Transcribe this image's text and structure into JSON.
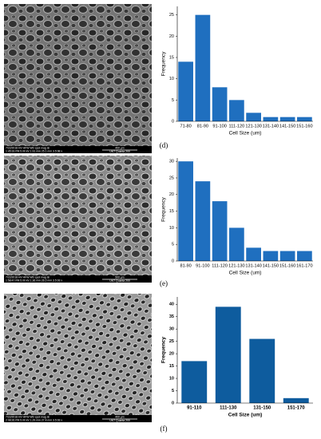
{
  "images": [
    {
      "info": [
        "7/22/2018 HV HFW WD spot mag ⊞",
        "1:45:33 PM 5.00 kV 1.91 mm 25.1 mm 3.5 98 x"
      ],
      "scale": "400 μm",
      "instrument": "UNT Quanta 200"
    },
    {
      "info": [
        "7/22/2018 HV HFW WD spot mag ⊞",
        "1:58:47 PM 5.00 kV 1.36 mm 26.2 mm 3.5 93 x"
      ],
      "scale": "500 μm",
      "instrument": "UNT Quanta 200"
    },
    {
      "info": [
        "7/22/2018 HV HFW WD spot mag ⊞",
        "2:08:26 PM 5.00 kV 1.29 mm 27.4 mm 3.5 93 x"
      ],
      "scale": "400 μm",
      "instrument": "UNT Quanta 200"
    }
  ],
  "chart_data": [
    {
      "type": "bar",
      "label": "(d)",
      "x_label": "Cell Size (um)",
      "y_label": "Frequency",
      "color": "#1f6fbf",
      "categories": [
        "71-80",
        "81-90",
        "91-100",
        "111-120",
        "121-130",
        "131-140",
        "141-150",
        "151-160"
      ],
      "values": [
        14,
        25,
        8,
        5,
        2,
        1,
        1,
        1
      ],
      "ylim": [
        0,
        27
      ],
      "yticks": [
        0,
        5,
        10,
        15,
        20,
        25
      ]
    },
    {
      "type": "bar",
      "label": "(e)",
      "x_label": "Cell Size (um)",
      "y_label": "Frequency",
      "color": "#1f6fbf",
      "categories": [
        "81-90",
        "91-100",
        "111-120",
        "121-130",
        "131-140",
        "141-150",
        "151-160",
        "161-170"
      ],
      "values": [
        30,
        24,
        18,
        10,
        4,
        3,
        3,
        3
      ],
      "ylim": [
        0,
        31
      ],
      "yticks": [
        0,
        5,
        10,
        15,
        20,
        25,
        30
      ]
    },
    {
      "type": "bar",
      "label": "(f)",
      "x_label": "Cell Size (um)",
      "y_label": "Frequency",
      "color": "#0e5c9e",
      "font_weight": "bold",
      "categories": [
        "91-110",
        "111-130",
        "131-150",
        "151-170"
      ],
      "values": [
        17,
        39,
        26,
        2
      ],
      "ylim": [
        0,
        43
      ],
      "yticks": [
        0,
        5,
        10,
        15,
        20,
        25,
        30,
        35,
        40
      ]
    }
  ]
}
